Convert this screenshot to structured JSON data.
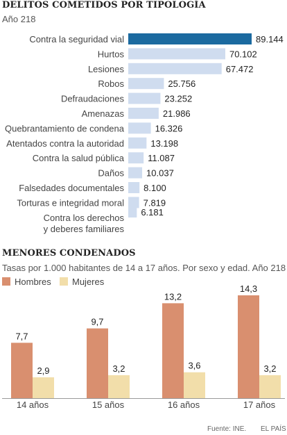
{
  "chart1": {
    "title": "DELITOS COMETIDOS POR TIPOLOGÍA",
    "subtitle": "Año 218"
  },
  "chart2": {
    "title": "MENORES CONDENADOS",
    "subtitle": "Tasas por 1.000 habitantes de 14 a 17 años. Por sexo y edad. Año 218"
  },
  "footer": {
    "source": "Fuente: INE.",
    "credit": "EL PAÍS"
  },
  "colors": {
    "highlight": "#1b6aa0",
    "bar": "#cfdcef",
    "hombres": "#d98f6f",
    "mujeres": "#f2deaa"
  },
  "chart_data": [
    {
      "type": "bar",
      "orientation": "horizontal",
      "title": "DELITOS COMETIDOS POR TIPOLOGÍA",
      "subtitle": "Año 218",
      "categories": [
        "Contra la seguridad vial",
        "Hurtos",
        "Lesiones",
        "Robos",
        "Defraudaciones",
        "Amenazas",
        "Quebrantamiento de condena",
        "Atentados contra la autoridad",
        "Contra la salud pública",
        "Daños",
        "Falsedades documentales",
        "Torturas e integridad moral",
        "Contra los derechos y deberes familiares"
      ],
      "values": [
        89144,
        70102,
        67472,
        25756,
        23252,
        21986,
        16326,
        13198,
        11087,
        10037,
        8100,
        7819,
        6181
      ],
      "value_labels": [
        "89.144",
        "70.102",
        "67.472",
        "25.756",
        "23.252",
        "21.986",
        "16.326",
        "13.198",
        "11.087",
        "10.037",
        "8.100",
        "7.819",
        "6.181"
      ],
      "highlighted_category": "Contra la seguridad vial"
    },
    {
      "type": "bar",
      "title": "MENORES CONDENADOS",
      "subtitle": "Tasas por 1.000 habitantes de 14 a 17 años. Por sexo y edad. Año 218",
      "categories": [
        "14 años",
        "15 años",
        "16 años",
        "17 años"
      ],
      "series": [
        {
          "name": "Hombres",
          "values": [
            7.7,
            9.7,
            13.2,
            14.3
          ],
          "labels": [
            "7,7",
            "9,7",
            "13,2",
            "14,3"
          ]
        },
        {
          "name": "Mujeres",
          "values": [
            2.9,
            3.2,
            3.6,
            3.2
          ],
          "labels": [
            "2,9",
            "3,2",
            "3,6",
            "3,2"
          ]
        }
      ],
      "legend_position": "top-left",
      "grid": false
    }
  ]
}
